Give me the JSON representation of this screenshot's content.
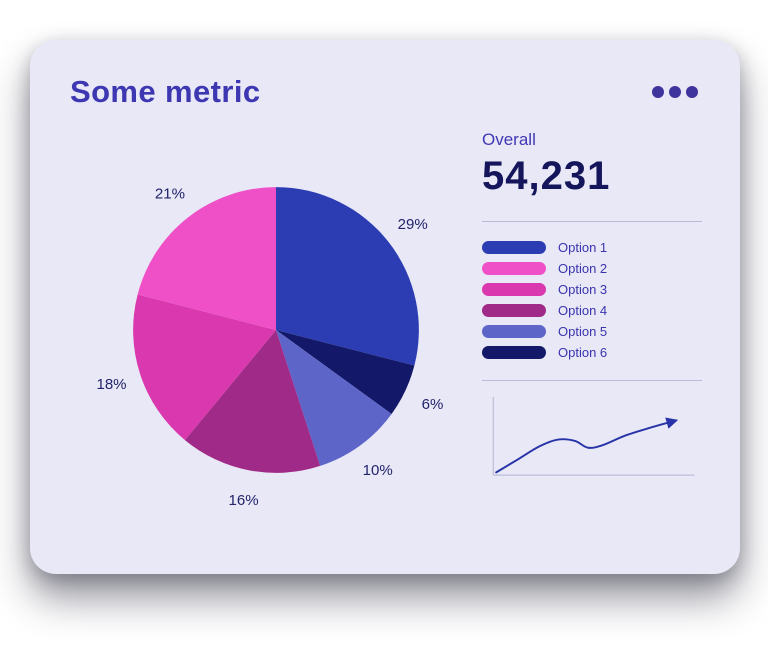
{
  "card": {
    "title": "Some metric",
    "menu_icon": "ellipsis-icon",
    "background": "#e8e8f7"
  },
  "overall": {
    "label": "Overall",
    "value": "54,231"
  },
  "colors": {
    "title": "#3d37b1",
    "value_text": "#15155c",
    "percent_label": "#23236b",
    "divider": "#b9b9d8",
    "axis": "#c4c4de",
    "spark_line": "#2733a6",
    "dots": "#3f339d"
  },
  "chart_data": [
    {
      "type": "pie",
      "title": "Some metric",
      "total_label": "Overall",
      "total_value": 54231,
      "slices_clockwise_from_top": [
        {
          "label": "Option 1",
          "pct": 29,
          "color": "#2c3db4"
        },
        {
          "label": "Option 6",
          "pct": 6,
          "color": "#131968"
        },
        {
          "label": "Option 5",
          "pct": 10,
          "color": "#5d65c9"
        },
        {
          "label": "Option 4",
          "pct": 16,
          "color": "#a02a87"
        },
        {
          "label": "Option 3",
          "pct": 18,
          "color": "#d938ae"
        },
        {
          "label": "Option 2",
          "pct": 21,
          "color": "#ef50c7"
        }
      ],
      "legend_position": "right",
      "legend": [
        {
          "label": "Option 1",
          "color": "#2c3db4"
        },
        {
          "label": "Option 2",
          "color": "#ef50c7"
        },
        {
          "label": "Option 3",
          "color": "#d938ae"
        },
        {
          "label": "Option 4",
          "color": "#a02a87"
        },
        {
          "label": "Option 5",
          "color": "#5d65c9"
        },
        {
          "label": "Option 6",
          "color": "#131968"
        }
      ]
    },
    {
      "type": "line",
      "name": "trend-sparkline",
      "color": "#2733a6",
      "axes": true,
      "arrow_end": true,
      "points": [
        {
          "x": 1,
          "y": 4
        },
        {
          "x": 12,
          "y": 22
        },
        {
          "x": 24,
          "y": 42
        },
        {
          "x": 34,
          "y": 52
        },
        {
          "x": 43,
          "y": 50
        },
        {
          "x": 50,
          "y": 40
        },
        {
          "x": 58,
          "y": 44
        },
        {
          "x": 70,
          "y": 58
        },
        {
          "x": 84,
          "y": 70
        },
        {
          "x": 97,
          "y": 80
        }
      ]
    }
  ]
}
